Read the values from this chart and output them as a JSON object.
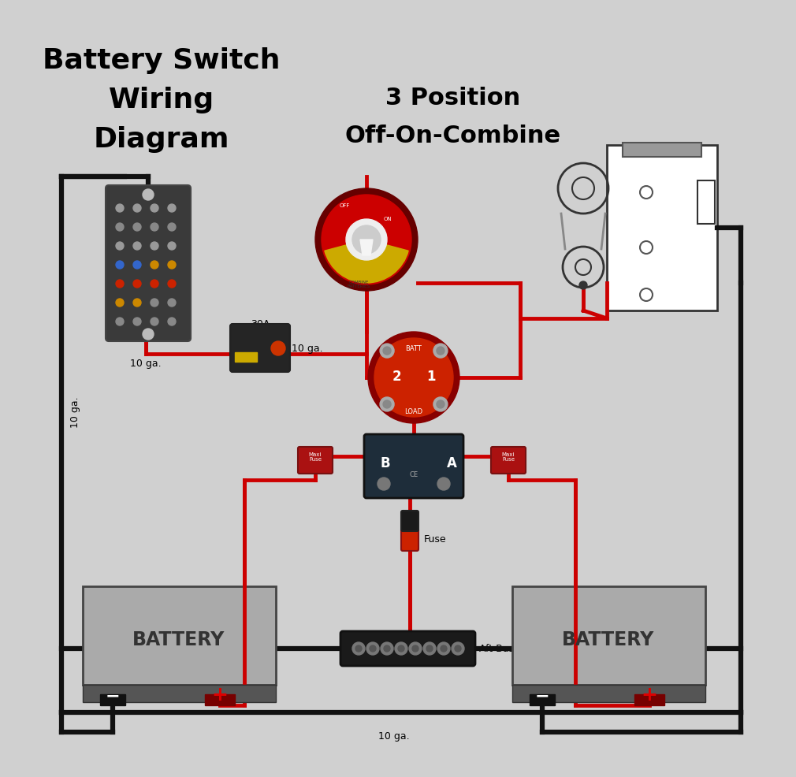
{
  "title_line1": "Battery Switch",
  "title_line2": "Wiring",
  "title_line3": "Diagram",
  "subtitle_line1": "3 Position",
  "subtitle_line2": "Off-On-Combine",
  "bg_color": "#d0d0d0",
  "wire_red": "#cc0000",
  "wire_black": "#111111",
  "label_10ga_left": "10 ga.",
  "label_10ga_cb": "10 ga.",
  "label_10ga_bottom": "10 ga.",
  "label_30a": "30A\nCircuit\nBreaker",
  "label_fuse": "Fuse",
  "label_aft": "Aft Bus Bar",
  "label_battery": "BATTERY",
  "figsize": [
    9.9,
    9.67
  ],
  "dpi": 100
}
